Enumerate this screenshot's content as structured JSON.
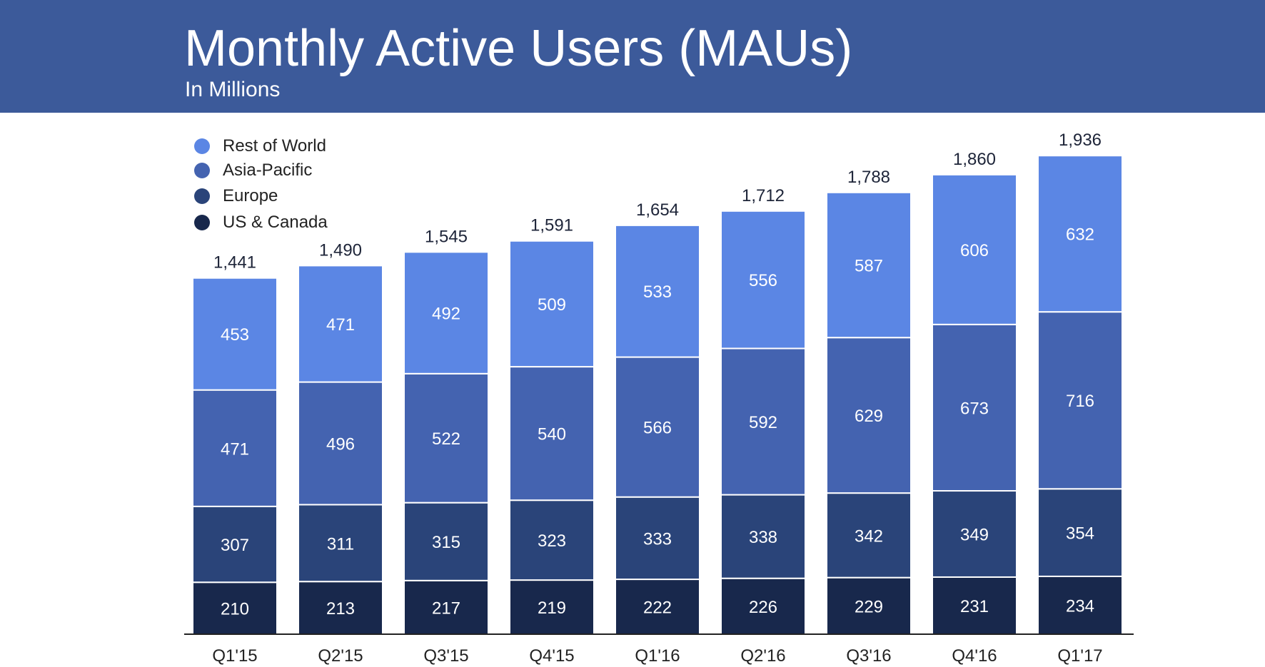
{
  "header": {
    "title": "Monthly Active Users (MAUs)",
    "subtitle": "In Millions"
  },
  "colors": {
    "banner": "#3c5a9a",
    "rest_of_world": "#5b86e4",
    "asia_pacific": "#4463b0",
    "europe": "#2a4479",
    "us_canada": "#18284c",
    "total_label": "#1d2438",
    "axis": "#222222"
  },
  "legend": {
    "items": [
      {
        "label": "Rest of World",
        "color": "#5b86e4"
      },
      {
        "label": "Asia-Pacific",
        "color": "#4463b0"
      },
      {
        "label": "Europe",
        "color": "#2a4479"
      },
      {
        "label": "US & Canada",
        "color": "#18284c"
      }
    ]
  },
  "chart_data": {
    "type": "bar",
    "stacked": true,
    "title": "Monthly Active Users (MAUs)",
    "subtitle": "In Millions",
    "xlabel": "",
    "ylabel": "",
    "ylim": [
      0,
      2000
    ],
    "grid": false,
    "legend_position": "top-left",
    "categories": [
      "Q1'15",
      "Q2'15",
      "Q3'15",
      "Q4'15",
      "Q1'16",
      "Q2'16",
      "Q3'16",
      "Q4'16",
      "Q1'17"
    ],
    "series": [
      {
        "name": "US & Canada",
        "color": "#18284c",
        "values": [
          210,
          213,
          217,
          219,
          222,
          226,
          229,
          231,
          234
        ]
      },
      {
        "name": "Europe",
        "color": "#2a4479",
        "values": [
          307,
          311,
          315,
          323,
          333,
          338,
          342,
          349,
          354
        ]
      },
      {
        "name": "Asia-Pacific",
        "color": "#4463b0",
        "values": [
          471,
          496,
          522,
          540,
          566,
          592,
          629,
          673,
          716
        ]
      },
      {
        "name": "Rest of World",
        "color": "#5b86e4",
        "values": [
          453,
          471,
          492,
          509,
          533,
          556,
          587,
          606,
          632
        ]
      }
    ],
    "totals": [
      "1,441",
      "1,490",
      "1,545",
      "1,591",
      "1,654",
      "1,712",
      "1,788",
      "1,860",
      "1,936"
    ]
  }
}
